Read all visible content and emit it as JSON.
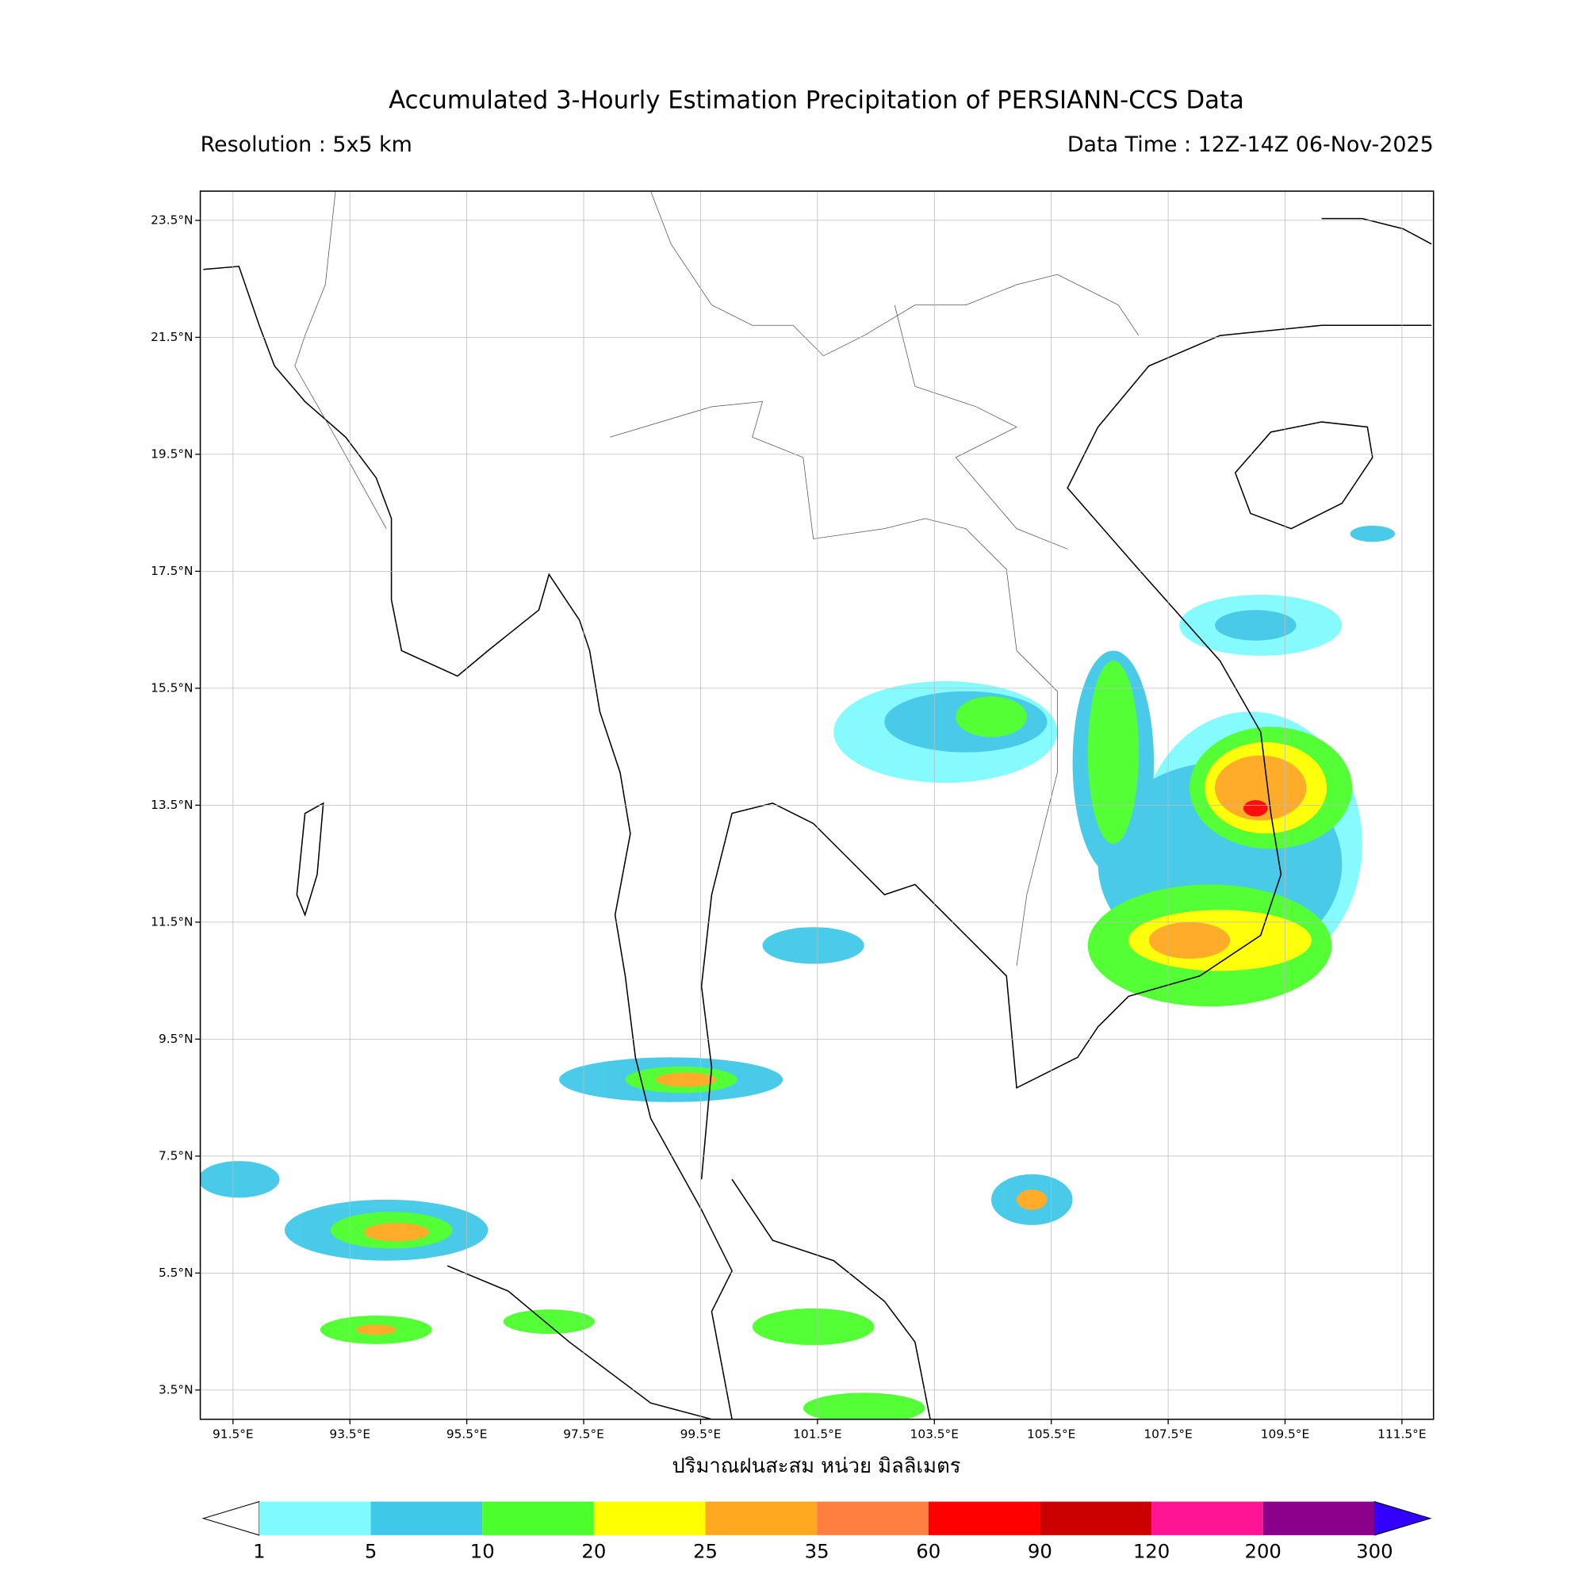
{
  "header": {
    "title": "Accumulated 3-Hourly Estimation Precipitation of PERSIANN-CCS Data",
    "resolution": "Resolution : 5x5 km",
    "data_time": "Data Time : 12Z-14Z 06-Nov-2025"
  },
  "map": {
    "lonlim": [
      90.94,
      112.04
    ],
    "latlim": [
      3.0,
      24.0
    ],
    "grid": true,
    "lon_ticks": [
      {
        "value": 91.5,
        "label": "91.5°E"
      },
      {
        "value": 93.5,
        "label": "93.5°E"
      },
      {
        "value": 95.5,
        "label": "95.5°E"
      },
      {
        "value": 97.5,
        "label": "97.5°E"
      },
      {
        "value": 99.5,
        "label": "99.5°E"
      },
      {
        "value": 101.5,
        "label": "101.5°E"
      },
      {
        "value": 103.5,
        "label": "103.5°E"
      },
      {
        "value": 105.5,
        "label": "105.5°E"
      },
      {
        "value": 107.5,
        "label": "107.5°E"
      },
      {
        "value": 109.5,
        "label": "109.5°E"
      },
      {
        "value": 111.5,
        "label": "111.5°E"
      }
    ],
    "lat_ticks": [
      {
        "value": 3.5,
        "label": "3.5°N"
      },
      {
        "value": 5.5,
        "label": "5.5°N"
      },
      {
        "value": 7.5,
        "label": "7.5°N"
      },
      {
        "value": 9.5,
        "label": "9.5°N"
      },
      {
        "value": 11.5,
        "label": "11.5°N"
      },
      {
        "value": 13.5,
        "label": "13.5°N"
      },
      {
        "value": 15.5,
        "label": "15.5°N"
      },
      {
        "value": 17.5,
        "label": "17.5°N"
      },
      {
        "value": 19.5,
        "label": "19.5°N"
      },
      {
        "value": 21.5,
        "label": "21.5°N"
      },
      {
        "value": 23.5,
        "label": "23.5°N"
      }
    ],
    "axis_label": "ปริมาณฝนสะสม หน่วย มิลลิเมตร"
  },
  "colorbar": {
    "levels": [
      1,
      5,
      10,
      20,
      25,
      35,
      60,
      90,
      120,
      200,
      300
    ],
    "colors": [
      "#7ffbff",
      "#40c8e8",
      "#4cff2c",
      "#ffff00",
      "#ffa820",
      "#ff7f40",
      "#ff0000",
      "#cc0000",
      "#ff1493",
      "#8b008b"
    ],
    "under_color": "#ffffff",
    "over_color": "#3300ff"
  }
}
